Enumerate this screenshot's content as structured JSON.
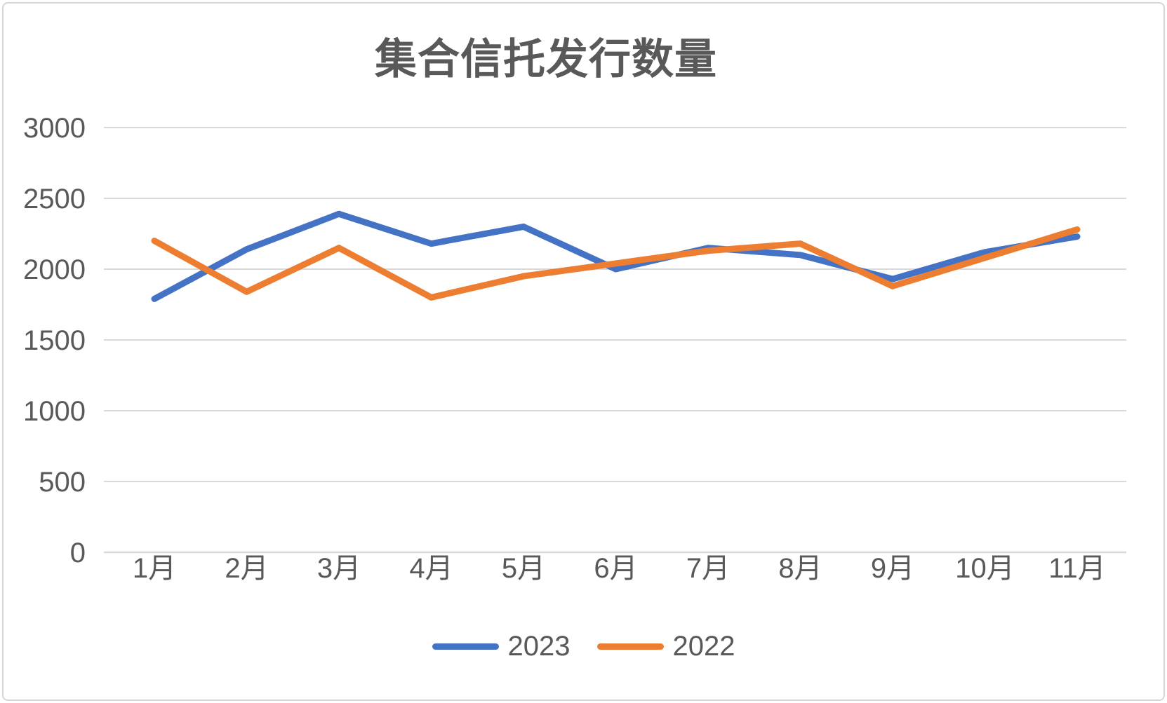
{
  "chart_data": {
    "type": "line",
    "title": "集合信托发行数量",
    "categories": [
      "1月",
      "2月",
      "3月",
      "4月",
      "5月",
      "6月",
      "7月",
      "8月",
      "9月",
      "10月",
      "11月"
    ],
    "series": [
      {
        "name": "2023",
        "color": "#4472C4",
        "values": [
          1790,
          2140,
          2390,
          2180,
          2300,
          2000,
          2150,
          2100,
          1930,
          2120,
          2230
        ]
      },
      {
        "name": "2022",
        "color": "#ED7D31",
        "values": [
          2200,
          1840,
          2150,
          1800,
          1950,
          2040,
          2130,
          2180,
          1880,
          2080,
          2280
        ]
      }
    ],
    "y_axis": {
      "min": 0,
      "max": 3000,
      "step": 500,
      "tick_labels": [
        "0",
        "500",
        "1000",
        "1500",
        "2000",
        "2500",
        "3000"
      ]
    },
    "x_axis_label": "",
    "y_axis_label": "",
    "grid": "horizontal",
    "legend_position": "bottom",
    "colors": {
      "grid": "#D9D9D9",
      "axis_text": "#595959",
      "title_text": "#595959",
      "background": "#FFFFFF",
      "border": "#D6D6D6"
    }
  }
}
